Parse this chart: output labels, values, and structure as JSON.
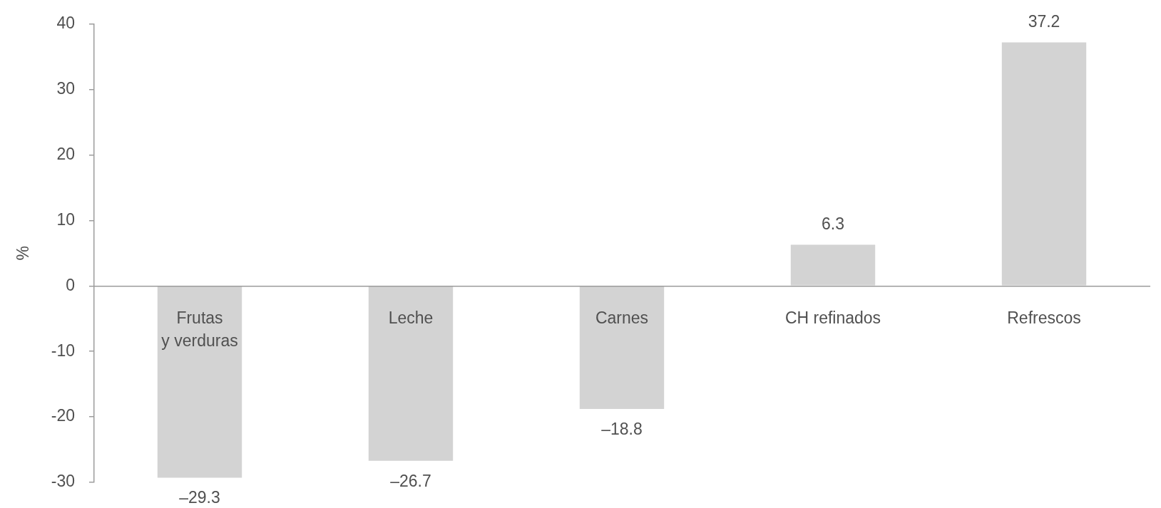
{
  "chart_data": {
    "type": "bar",
    "ylabel": "%",
    "categories": [
      "Frutas\ny verduras",
      "Leche",
      "Carnes",
      "CH refinados",
      "Refrescos"
    ],
    "values": [
      -29.3,
      -26.7,
      -18.8,
      6.3,
      37.2
    ],
    "value_labels": [
      "–29.3",
      "–26.7",
      "–18.8",
      "6.3",
      "37.2"
    ],
    "color": "#d3d3d3",
    "ylim": [
      -30,
      40
    ],
    "yticks": [
      -30,
      -20,
      -10,
      0,
      10,
      20,
      30,
      40
    ]
  }
}
